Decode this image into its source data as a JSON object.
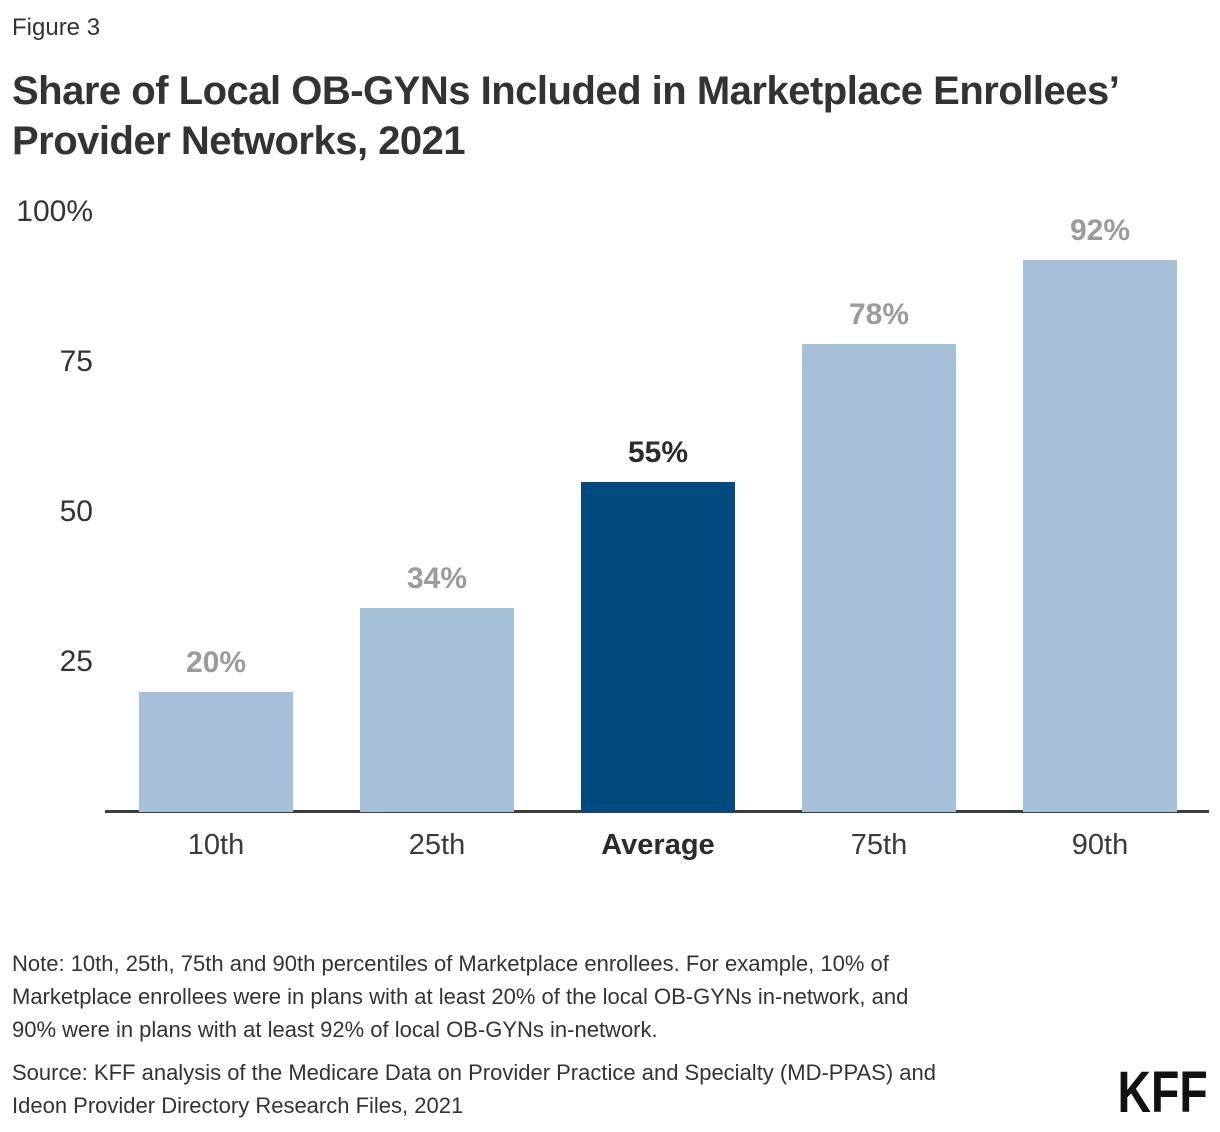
{
  "figure_label": "Figure 3",
  "title": "Share of Local OB-GYNs Included in Marketplace Enrollees’\nProvider Networks, 2021",
  "note": "Note: 10th, 25th, 75th and 90th percentiles of Marketplace enrollees. For example, 10% of\nMarketplace enrollees were in plans with at least 20% of the local OB-GYNs in-network, and\n90% were in plans with at least 92% of local OB-GYNs in-network.",
  "source": "Source: KFF analysis of the Medicare Data on Provider Practice and Specialty (MD-PPAS) and\nIdeon Provider Directory Research Files, 2021",
  "logo_text": "KFF",
  "colors": {
    "bar_light": "#a6c1d7",
    "bar_dark": "#004a80",
    "value_label_gray": "#9b9b9b",
    "value_label_dark": "#2b2b2b",
    "axis_line": "#3d3d3d",
    "text": "#333333"
  },
  "chart_data": {
    "type": "bar",
    "title": "Share of Local OB-GYNs Included in Marketplace Enrollees’ Provider Networks, 2021",
    "categories": [
      "10th",
      "25th",
      "Average",
      "75th",
      "90th"
    ],
    "values": [
      20,
      34,
      55,
      78,
      92
    ],
    "value_labels": [
      "20%",
      "34%",
      "55%",
      "78%",
      "92%"
    ],
    "highlight_index": 2,
    "xlabel": "",
    "ylabel": "",
    "ylim": [
      0,
      100
    ],
    "y_ticks": [
      {
        "label": "100%",
        "value": 100
      },
      {
        "label": "75",
        "value": 75
      },
      {
        "label": "50",
        "value": 50
      },
      {
        "label": "25",
        "value": 25
      }
    ],
    "grid": false,
    "legend": false
  }
}
